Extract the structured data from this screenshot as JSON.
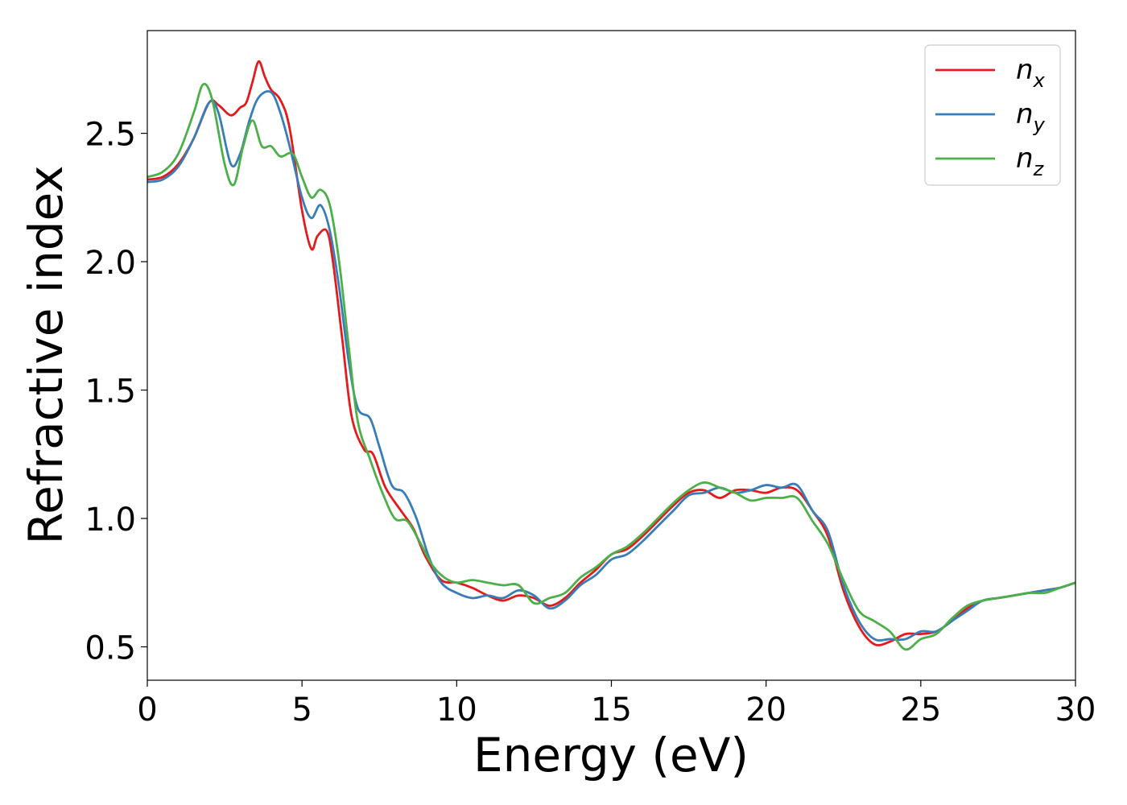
{
  "chart_data": {
    "type": "line",
    "title": "",
    "xlabel": "Energy (eV)",
    "ylabel": "Refractive index",
    "xlim": [
      0,
      30
    ],
    "ylim": [
      0.37,
      2.9
    ],
    "xticks": [
      0,
      5,
      10,
      15,
      20,
      25,
      30
    ],
    "xtick_labels": [
      "0",
      "5",
      "10",
      "15",
      "20",
      "25",
      "30"
    ],
    "yticks": [
      0.5,
      1.0,
      1.5,
      2.0,
      2.5
    ],
    "ytick_labels": [
      "0.5",
      "1.0",
      "1.5",
      "2.0",
      "2.5"
    ],
    "grid": false,
    "legend_position": "top-right",
    "series": [
      {
        "name": "n",
        "subscript": "x",
        "color": "#e41a1c",
        "points": [
          [
            0,
            2.32
          ],
          [
            0.5,
            2.33
          ],
          [
            1,
            2.38
          ],
          [
            1.5,
            2.48
          ],
          [
            2,
            2.62
          ],
          [
            2.3,
            2.61
          ],
          [
            2.7,
            2.57
          ],
          [
            3.0,
            2.6
          ],
          [
            3.2,
            2.62
          ],
          [
            3.4,
            2.7
          ],
          [
            3.6,
            2.78
          ],
          [
            3.8,
            2.72
          ],
          [
            4.0,
            2.67
          ],
          [
            4.3,
            2.63
          ],
          [
            4.6,
            2.52
          ],
          [
            5.0,
            2.2
          ],
          [
            5.3,
            2.05
          ],
          [
            5.5,
            2.1
          ],
          [
            5.8,
            2.12
          ],
          [
            6.0,
            2.0
          ],
          [
            6.3,
            1.7
          ],
          [
            6.6,
            1.4
          ],
          [
            7.0,
            1.27
          ],
          [
            7.3,
            1.25
          ],
          [
            7.7,
            1.12
          ],
          [
            8.2,
            1.03
          ],
          [
            8.6,
            0.96
          ],
          [
            9.0,
            0.85
          ],
          [
            9.5,
            0.76
          ],
          [
            10.0,
            0.75
          ],
          [
            10.5,
            0.73
          ],
          [
            11.0,
            0.7
          ],
          [
            11.5,
            0.68
          ],
          [
            12.0,
            0.7
          ],
          [
            12.5,
            0.69
          ],
          [
            13.0,
            0.66
          ],
          [
            13.5,
            0.69
          ],
          [
            14.0,
            0.75
          ],
          [
            14.5,
            0.8
          ],
          [
            15.0,
            0.86
          ],
          [
            15.5,
            0.88
          ],
          [
            16.0,
            0.93
          ],
          [
            16.5,
            0.99
          ],
          [
            17.0,
            1.05
          ],
          [
            17.5,
            1.1
          ],
          [
            18.0,
            1.11
          ],
          [
            18.5,
            1.08
          ],
          [
            19.0,
            1.11
          ],
          [
            19.5,
            1.11
          ],
          [
            20.0,
            1.1
          ],
          [
            20.5,
            1.12
          ],
          [
            21.0,
            1.11
          ],
          [
            21.5,
            1.03
          ],
          [
            22.0,
            0.93
          ],
          [
            22.5,
            0.72
          ],
          [
            23.0,
            0.58
          ],
          [
            23.5,
            0.51
          ],
          [
            24.0,
            0.52
          ],
          [
            24.5,
            0.55
          ],
          [
            25.0,
            0.55
          ],
          [
            25.5,
            0.56
          ],
          [
            26.0,
            0.6
          ],
          [
            26.5,
            0.65
          ],
          [
            27.0,
            0.68
          ],
          [
            27.5,
            0.69
          ],
          [
            28.0,
            0.7
          ],
          [
            28.5,
            0.71
          ],
          [
            29.0,
            0.72
          ],
          [
            29.5,
            0.73
          ],
          [
            30.0,
            0.75
          ]
        ]
      },
      {
        "name": "n",
        "subscript": "y",
        "color": "#377eb8",
        "points": [
          [
            0,
            2.31
          ],
          [
            0.5,
            2.32
          ],
          [
            1,
            2.37
          ],
          [
            1.5,
            2.48
          ],
          [
            2,
            2.62
          ],
          [
            2.3,
            2.58
          ],
          [
            2.7,
            2.38
          ],
          [
            3.0,
            2.42
          ],
          [
            3.3,
            2.55
          ],
          [
            3.6,
            2.64
          ],
          [
            4.0,
            2.66
          ],
          [
            4.3,
            2.58
          ],
          [
            4.6,
            2.45
          ],
          [
            5.0,
            2.25
          ],
          [
            5.3,
            2.17
          ],
          [
            5.6,
            2.22
          ],
          [
            5.9,
            2.12
          ],
          [
            6.2,
            1.9
          ],
          [
            6.5,
            1.62
          ],
          [
            6.8,
            1.43
          ],
          [
            7.2,
            1.39
          ],
          [
            7.5,
            1.28
          ],
          [
            7.9,
            1.13
          ],
          [
            8.3,
            1.1
          ],
          [
            8.7,
            1.0
          ],
          [
            9.1,
            0.85
          ],
          [
            9.5,
            0.75
          ],
          [
            10.0,
            0.71
          ],
          [
            10.5,
            0.69
          ],
          [
            11.0,
            0.7
          ],
          [
            11.5,
            0.69
          ],
          [
            12.0,
            0.72
          ],
          [
            12.5,
            0.7
          ],
          [
            13.0,
            0.65
          ],
          [
            13.5,
            0.68
          ],
          [
            14.0,
            0.74
          ],
          [
            14.5,
            0.78
          ],
          [
            15.0,
            0.84
          ],
          [
            15.5,
            0.86
          ],
          [
            16.0,
            0.91
          ],
          [
            16.5,
            0.97
          ],
          [
            17.0,
            1.03
          ],
          [
            17.5,
            1.09
          ],
          [
            18.0,
            1.1
          ],
          [
            18.5,
            1.12
          ],
          [
            19.0,
            1.1
          ],
          [
            19.5,
            1.11
          ],
          [
            20.0,
            1.13
          ],
          [
            20.5,
            1.12
          ],
          [
            21.0,
            1.13
          ],
          [
            21.5,
            1.03
          ],
          [
            22.0,
            0.95
          ],
          [
            22.5,
            0.74
          ],
          [
            23.0,
            0.6
          ],
          [
            23.5,
            0.53
          ],
          [
            24.0,
            0.53
          ],
          [
            24.5,
            0.53
          ],
          [
            25.0,
            0.56
          ],
          [
            25.5,
            0.56
          ],
          [
            26.0,
            0.6
          ],
          [
            26.5,
            0.64
          ],
          [
            27.0,
            0.68
          ],
          [
            27.5,
            0.69
          ],
          [
            28.0,
            0.7
          ],
          [
            28.5,
            0.71
          ],
          [
            29.0,
            0.72
          ],
          [
            29.5,
            0.73
          ],
          [
            30.0,
            0.75
          ]
        ]
      },
      {
        "name": "n",
        "subscript": "z",
        "color": "#4daf4a",
        "points": [
          [
            0,
            2.33
          ],
          [
            0.5,
            2.35
          ],
          [
            1,
            2.42
          ],
          [
            1.5,
            2.58
          ],
          [
            1.8,
            2.69
          ],
          [
            2.1,
            2.63
          ],
          [
            2.5,
            2.38
          ],
          [
            2.8,
            2.3
          ],
          [
            3.1,
            2.45
          ],
          [
            3.4,
            2.55
          ],
          [
            3.7,
            2.45
          ],
          [
            4.0,
            2.45
          ],
          [
            4.3,
            2.41
          ],
          [
            4.7,
            2.42
          ],
          [
            5.0,
            2.33
          ],
          [
            5.3,
            2.25
          ],
          [
            5.6,
            2.28
          ],
          [
            5.9,
            2.22
          ],
          [
            6.2,
            2.0
          ],
          [
            6.5,
            1.68
          ],
          [
            6.8,
            1.38
          ],
          [
            7.2,
            1.23
          ],
          [
            7.6,
            1.1
          ],
          [
            8.0,
            1.0
          ],
          [
            8.4,
            0.99
          ],
          [
            8.8,
            0.91
          ],
          [
            9.2,
            0.82
          ],
          [
            9.6,
            0.77
          ],
          [
            10.0,
            0.75
          ],
          [
            10.5,
            0.76
          ],
          [
            11.0,
            0.75
          ],
          [
            11.5,
            0.74
          ],
          [
            12.0,
            0.74
          ],
          [
            12.5,
            0.67
          ],
          [
            13.0,
            0.69
          ],
          [
            13.5,
            0.71
          ],
          [
            14.0,
            0.77
          ],
          [
            14.5,
            0.81
          ],
          [
            15.0,
            0.86
          ],
          [
            15.5,
            0.89
          ],
          [
            16.0,
            0.94
          ],
          [
            16.5,
            1.0
          ],
          [
            17.0,
            1.06
          ],
          [
            17.5,
            1.11
          ],
          [
            18.0,
            1.14
          ],
          [
            18.5,
            1.12
          ],
          [
            19.0,
            1.1
          ],
          [
            19.5,
            1.07
          ],
          [
            20.0,
            1.08
          ],
          [
            20.5,
            1.08
          ],
          [
            21.0,
            1.08
          ],
          [
            21.5,
            0.99
          ],
          [
            22.0,
            0.9
          ],
          [
            22.5,
            0.76
          ],
          [
            23.0,
            0.64
          ],
          [
            23.5,
            0.6
          ],
          [
            24.0,
            0.56
          ],
          [
            24.5,
            0.49
          ],
          [
            25.0,
            0.53
          ],
          [
            25.5,
            0.55
          ],
          [
            26.0,
            0.61
          ],
          [
            26.5,
            0.66
          ],
          [
            27.0,
            0.68
          ],
          [
            27.5,
            0.69
          ],
          [
            28.0,
            0.7
          ],
          [
            28.5,
            0.71
          ],
          [
            29.0,
            0.71
          ],
          [
            29.5,
            0.73
          ],
          [
            30.0,
            0.75
          ]
        ]
      }
    ]
  }
}
